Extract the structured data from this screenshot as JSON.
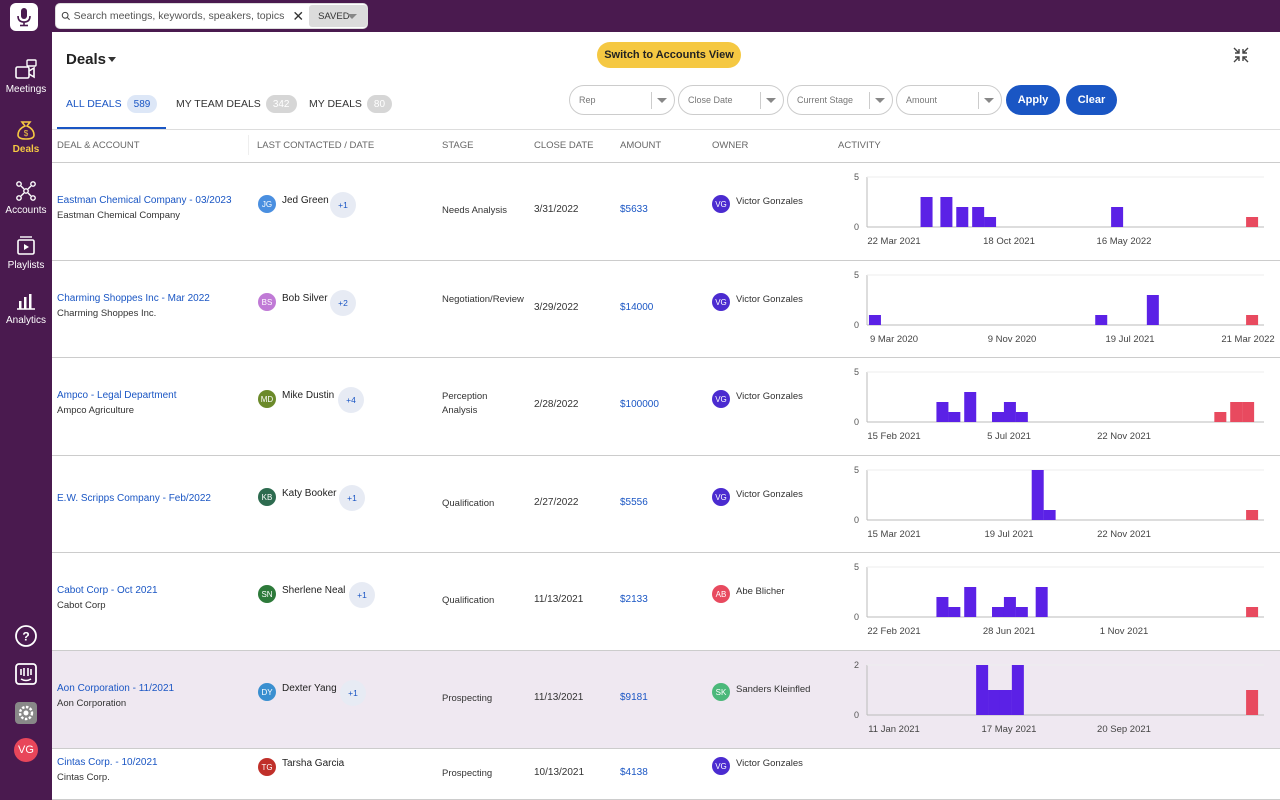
{
  "search": {
    "placeholder": "Search meetings, keywords, speakers, topics",
    "saved_label": "SAVED"
  },
  "sidebar": {
    "items": [
      {
        "label": "Meetings",
        "icon": "video-chat-icon"
      },
      {
        "label": "Deals",
        "icon": "money-bag-icon",
        "active": true
      },
      {
        "label": "Accounts",
        "icon": "network-icon"
      },
      {
        "label": "Playlists",
        "icon": "playlist-icon"
      },
      {
        "label": "Analytics",
        "icon": "analytics-icon"
      }
    ],
    "user_initials": "VG"
  },
  "header": {
    "title": "Deals",
    "switch_label": "Switch to Accounts View",
    "tabs": [
      {
        "label": "ALL DEALS",
        "count": "589",
        "active": true
      },
      {
        "label": "MY TEAM DEALS",
        "count": "342"
      },
      {
        "label": "MY DEALS",
        "count": "80"
      }
    ],
    "filters": [
      "Rep",
      "Close Date",
      "Current Stage",
      "Amount"
    ],
    "apply_label": "Apply",
    "clear_label": "Clear"
  },
  "columns": [
    "DEAL & ACCOUNT",
    "LAST CONTACTED / DATE",
    "STAGE",
    "CLOSE DATE",
    "AMOUNT",
    "OWNER",
    "ACTIVITY"
  ],
  "colors": {
    "brand": "#4a1a4f",
    "accent": "#1a56c4",
    "highlight": "#f5c842",
    "activity_internal": "#5b21e6",
    "activity_recent": "#e84a5f"
  },
  "deals": [
    {
      "deal": "Eastman Chemical Company - 03/2023",
      "account": "Eastman Chemical Company",
      "contact": "Jed Green",
      "contact_initials": "JG",
      "contact_color": "#4a8fe0",
      "more": "+1",
      "stage": "Needs Analysis",
      "close_date": "3/31/2022",
      "amount": "$5633",
      "owner": "Victor Gonzales",
      "owner_initials": "VG",
      "owner_color": "#4b2bd0",
      "activity": {
        "ymax": "5",
        "ymin": "0",
        "xlabels": [
          "22 Mar 2021",
          "18 Oct 2021",
          "16 May 2022"
        ],
        "bars": [
          [
            0.15,
            3
          ],
          [
            0.2,
            3
          ],
          [
            0.24,
            2
          ],
          [
            0.28,
            2
          ],
          [
            0.31,
            1
          ],
          [
            0.63,
            2
          ],
          [
            0.97,
            1
          ]
        ]
      }
    },
    {
      "deal": "Charming Shoppes Inc - Mar 2022",
      "account": "Charming Shoppes Inc.",
      "contact": "Bob Silver",
      "contact_initials": "BS",
      "contact_color": "#c07ad6",
      "more": "+2",
      "stage": "Negotiation/Review",
      "close_date": "3/29/2022",
      "amount": "$14000",
      "owner": "Victor Gonzales",
      "owner_initials": "VG",
      "owner_color": "#4b2bd0",
      "activity": {
        "ymax": "5",
        "ymin": "0",
        "xlabels": [
          "9 Mar 2020",
          "9 Nov 2020",
          "19 Jul 2021",
          "21 Mar 2022"
        ],
        "bars": [
          [
            0.02,
            1
          ],
          [
            0.59,
            1
          ],
          [
            0.72,
            3
          ],
          [
            0.97,
            1
          ]
        ]
      }
    },
    {
      "deal": "Ampco - Legal Department",
      "account": "Ampco Agriculture",
      "contact": "Mike Dustin",
      "contact_initials": "MD",
      "contact_color": "#6b8a2a",
      "more": "+4",
      "stage": "Perception Analysis",
      "close_date": "2/28/2022",
      "amount": "$100000",
      "owner": "Victor Gonzales",
      "owner_initials": "VG",
      "owner_color": "#4b2bd0",
      "activity": {
        "ymax": "5",
        "ymin": "0",
        "xlabels": [
          "15 Feb 2021",
          "5 Jul 2021",
          "22 Nov 2021"
        ],
        "bars": [
          [
            0.19,
            2
          ],
          [
            0.22,
            1
          ],
          [
            0.26,
            3
          ],
          [
            0.33,
            1
          ],
          [
            0.36,
            2
          ],
          [
            0.39,
            1
          ],
          [
            0.89,
            1
          ],
          [
            0.93,
            2
          ],
          [
            0.96,
            2
          ]
        ]
      }
    },
    {
      "deal": "E.W. Scripps Company - Feb/2022",
      "account": "",
      "contact": "Katy Booker",
      "contact_initials": "KB",
      "contact_color": "#2d6b4f",
      "more": "+1",
      "stage": "Qualification",
      "close_date": "2/27/2022",
      "amount": "$5556",
      "owner": "Victor Gonzales",
      "owner_initials": "VG",
      "owner_color": "#4b2bd0",
      "activity": {
        "ymax": "5",
        "ymin": "0",
        "xlabels": [
          "15 Mar 2021",
          "19 Jul 2021",
          "22 Nov 2021"
        ],
        "bars": [
          [
            0.43,
            5
          ],
          [
            0.46,
            1
          ],
          [
            0.97,
            1
          ]
        ]
      }
    },
    {
      "deal": "Cabot Corp - Oct 2021",
      "account": "Cabot Corp",
      "contact": "Sherlene Neal",
      "contact_initials": "SN",
      "contact_color": "#2d7a3a",
      "more": "+1",
      "stage": "Qualification",
      "close_date": "11/13/2021",
      "amount": "$2133",
      "owner": "Abe Blicher",
      "owner_initials": "AB",
      "owner_color": "#e84a5f",
      "activity": {
        "ymax": "5",
        "ymin": "0",
        "xlabels": [
          "22 Feb 2021",
          "28 Jun 2021",
          "1 Nov 2021"
        ],
        "bars": [
          [
            0.19,
            2
          ],
          [
            0.22,
            1
          ],
          [
            0.26,
            3
          ],
          [
            0.33,
            1
          ],
          [
            0.36,
            2
          ],
          [
            0.39,
            1
          ],
          [
            0.44,
            3
          ],
          [
            0.97,
            1
          ]
        ]
      }
    },
    {
      "deal": "Aon Corporation - 11/2021",
      "account": "Aon Corporation",
      "contact": "Dexter Yang",
      "contact_initials": "DY",
      "contact_color": "#3a8fd0",
      "more": "+1",
      "stage": "Prospecting",
      "close_date": "11/13/2021",
      "amount": "$9181",
      "owner": "Sanders Kleinfled",
      "owner_initials": "SK",
      "owner_color": "#4bb87a",
      "activity": {
        "ymax": "2",
        "ymin": "0",
        "xlabels": [
          "11 Jan 2021",
          "17 May 2021",
          "20 Sep 2021"
        ],
        "bars": [
          [
            0.29,
            2
          ],
          [
            0.32,
            1
          ],
          [
            0.35,
            1
          ],
          [
            0.38,
            2
          ],
          [
            0.97,
            1
          ]
        ]
      }
    },
    {
      "deal": "Cintas Corp. - 10/2021",
      "account": "Cintas Corp.",
      "contact": "Tarsha Garcia",
      "contact_initials": "TG",
      "contact_color": "#c0302a",
      "more": "",
      "stage": "Prospecting",
      "close_date": "10/13/2021",
      "amount": "$4138",
      "owner": "Victor Gonzales",
      "owner_initials": "VG",
      "owner_color": "#4b2bd0",
      "activity": null
    }
  ]
}
